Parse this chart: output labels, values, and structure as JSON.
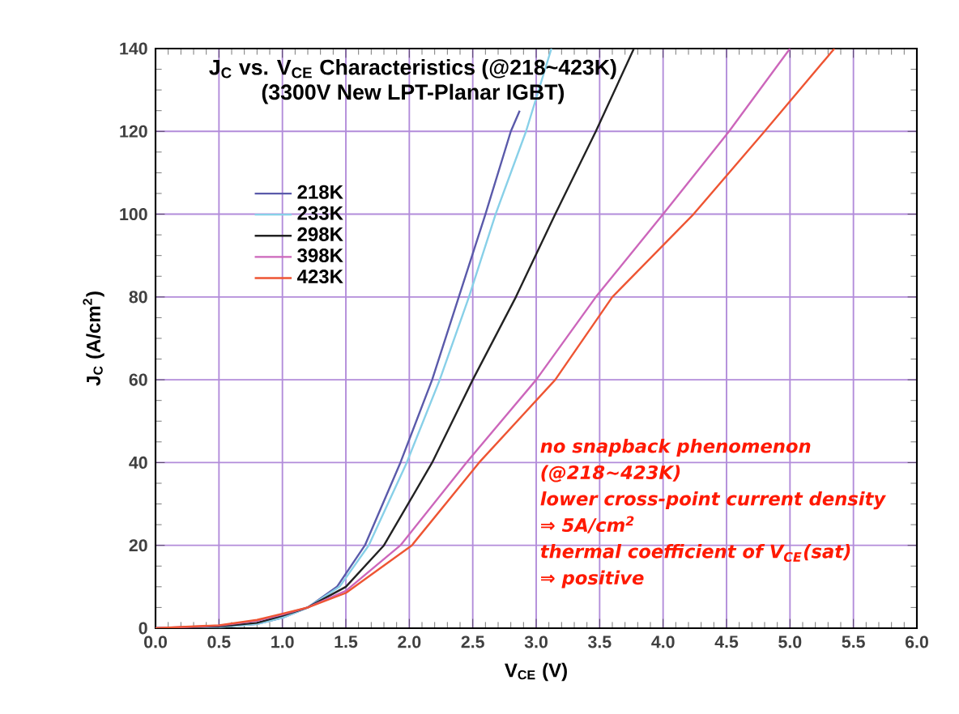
{
  "chart_data": {
    "type": "line",
    "title": "J$_{C}$ vs. V$_{CE}$ Characteristics (@218~423K)",
    "subtitle": "(3300V New LPT-Planar IGBT)",
    "xlabel": "V$_{CE}$ (V)",
    "ylabel": "J$_{C}$ (A/cm$^{2}$)",
    "xlim": [
      0,
      6
    ],
    "ylim": [
      0,
      140
    ],
    "xticks": [
      {
        "value": 0,
        "label": "0.0"
      },
      0.5,
      {
        "value": 1,
        "label": "1.0"
      },
      1.5,
      {
        "value": 2,
        "label": "2.0"
      },
      2.5,
      {
        "value": 3,
        "label": "3.0"
      },
      3.5,
      {
        "value": 4,
        "label": "4.0"
      },
      4.5,
      {
        "value": 5,
        "label": "5.0"
      },
      5.5,
      {
        "value": 6,
        "label": "6.0"
      }
    ],
    "yticks": [
      0,
      20,
      40,
      60,
      80,
      100,
      120,
      140
    ],
    "grid": true,
    "legend": "top left",
    "marker": "none",
    "line_style": "solid",
    "series": [
      {
        "name": "218K",
        "color": "#5a5aaa",
        "x": [
          0,
          0.5,
          0.8,
          1.0,
          1.2,
          1.43,
          1.65,
          1.93,
          2.18,
          2.39,
          2.6,
          2.8,
          2.87
        ],
        "values": [
          0,
          0.3,
          1,
          2.5,
          5,
          10,
          20,
          40,
          60,
          80,
          100,
          120,
          125
        ]
      },
      {
        "name": "233K",
        "color": "#88d0e8",
        "x": [
          0,
          0.5,
          0.8,
          1.0,
          1.2,
          1.45,
          1.68,
          1.98,
          2.24,
          2.47,
          2.68,
          2.92,
          3.12
        ],
        "values": [
          0,
          0.3,
          1,
          2.5,
          5,
          10,
          20,
          40,
          60,
          80,
          100,
          120,
          140
        ]
      },
      {
        "name": "298K",
        "color": "#222222",
        "x": [
          0,
          0.5,
          0.8,
          1.0,
          1.2,
          1.5,
          1.8,
          2.18,
          2.5,
          2.84,
          3.15,
          3.47,
          3.77
        ],
        "values": [
          0,
          0.4,
          1.3,
          3,
          5,
          10,
          20,
          40,
          60,
          80,
          100,
          120,
          140
        ]
      },
      {
        "name": "398K",
        "color": "#cc66bb",
        "x": [
          0,
          0.5,
          0.8,
          1.0,
          1.2,
          1.5,
          1.93,
          2.45,
          3.0,
          3.47,
          4.0,
          4.52,
          5.0
        ],
        "values": [
          0,
          0.6,
          1.8,
          3.3,
          5,
          9,
          20,
          40,
          60,
          80,
          100,
          120,
          140
        ]
      },
      {
        "name": "423K",
        "color": "#ee5533",
        "x": [
          0,
          0.5,
          0.8,
          1.0,
          1.2,
          1.5,
          2.02,
          2.55,
          3.15,
          3.6,
          4.24,
          4.8,
          5.35
        ],
        "values": [
          0,
          0.7,
          2,
          3.5,
          5,
          8.5,
          20,
          40,
          60,
          80,
          100,
          120,
          140
        ]
      }
    ],
    "annotations": [
      "no snapback phenomenon",
      "(@218~423K)",
      "lower cross-point current density",
      "⇒ 5A/cm$^{2}$",
      "thermal coefficient of V$_{CE}$(sat)",
      "⇒ positive"
    ]
  }
}
